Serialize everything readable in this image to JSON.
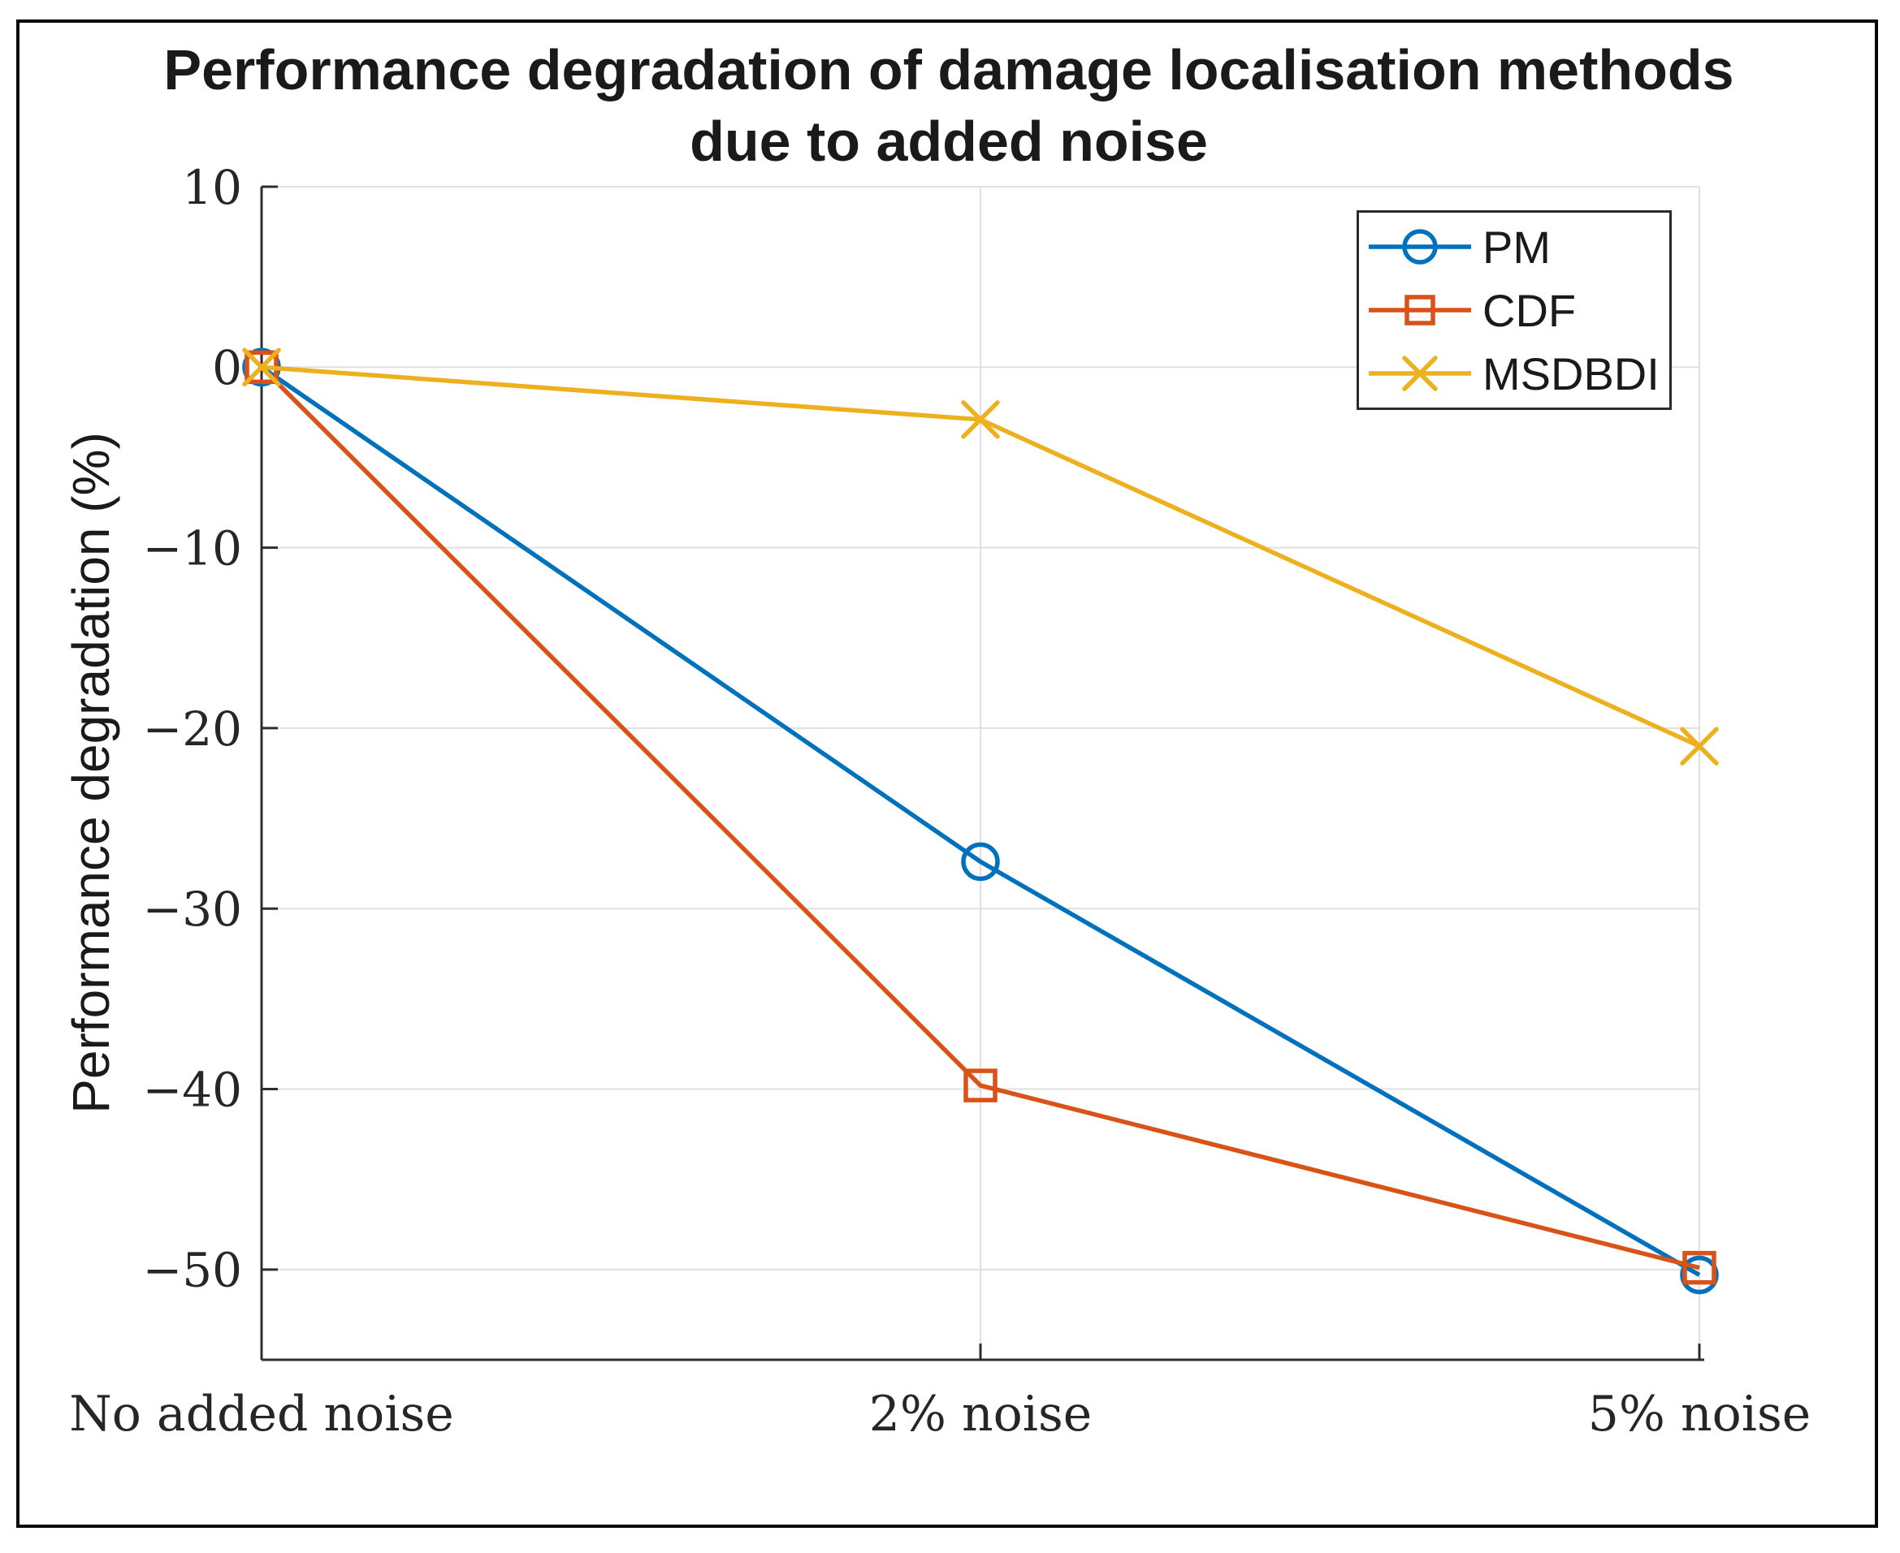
{
  "figure": {
    "title_lines": [
      "Performance degradation of damage localisation methods",
      "due to added noise"
    ]
  },
  "chart_data": {
    "type": "line",
    "title": "Performance degradation of damage localisation methods due to added noise",
    "xlabel": "",
    "ylabel": "Performance degradation (%)",
    "categories": [
      "No added noise",
      "2% noise",
      "5% noise"
    ],
    "series": [
      {
        "name": "PM",
        "color": "#0072BD",
        "marker": "circle",
        "values": [
          0,
          -27.4,
          -50.3
        ]
      },
      {
        "name": "CDF",
        "color": "#D95319",
        "marker": "square",
        "values": [
          0,
          -39.8,
          -49.9
        ]
      },
      {
        "name": "MSDBDI",
        "color": "#EDB120",
        "marker": "x",
        "values": [
          0,
          -2.9,
          -21.0
        ]
      }
    ],
    "yticks": [
      10,
      0,
      -10,
      -20,
      -30,
      -40,
      -50
    ],
    "ytick_labels": [
      "10",
      "0",
      "−10",
      "−20",
      "−30",
      "−40",
      "−50"
    ],
    "ylim": [
      -55,
      10
    ],
    "grid": true,
    "legend_position": "top-right"
  },
  "colors": {
    "axis": "#2e2e2e",
    "grid": "#e0e0e0",
    "tick_text": "#262626",
    "frame": "#0a0a0a",
    "background": "#ffffff"
  }
}
